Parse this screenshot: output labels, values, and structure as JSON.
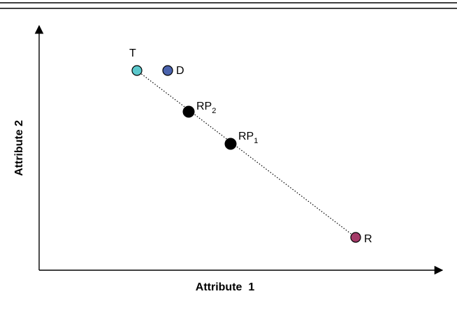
{
  "diagram": {
    "x_axis_label": "Attribute  1",
    "y_axis_label": "Attribute 2",
    "points": {
      "T": {
        "label": "T",
        "fill": "#5bc8cc"
      },
      "D": {
        "label": "D",
        "fill": "#4a63ad"
      },
      "RP2": {
        "label": "RP",
        "subscript": "2",
        "fill": "#000000"
      },
      "RP1": {
        "label": "RP",
        "subscript": "1",
        "fill": "#000000"
      },
      "R": {
        "label": "R",
        "fill": "#a33a67"
      }
    },
    "connector": {
      "from": "T",
      "to": "R",
      "style": "dotted"
    }
  }
}
